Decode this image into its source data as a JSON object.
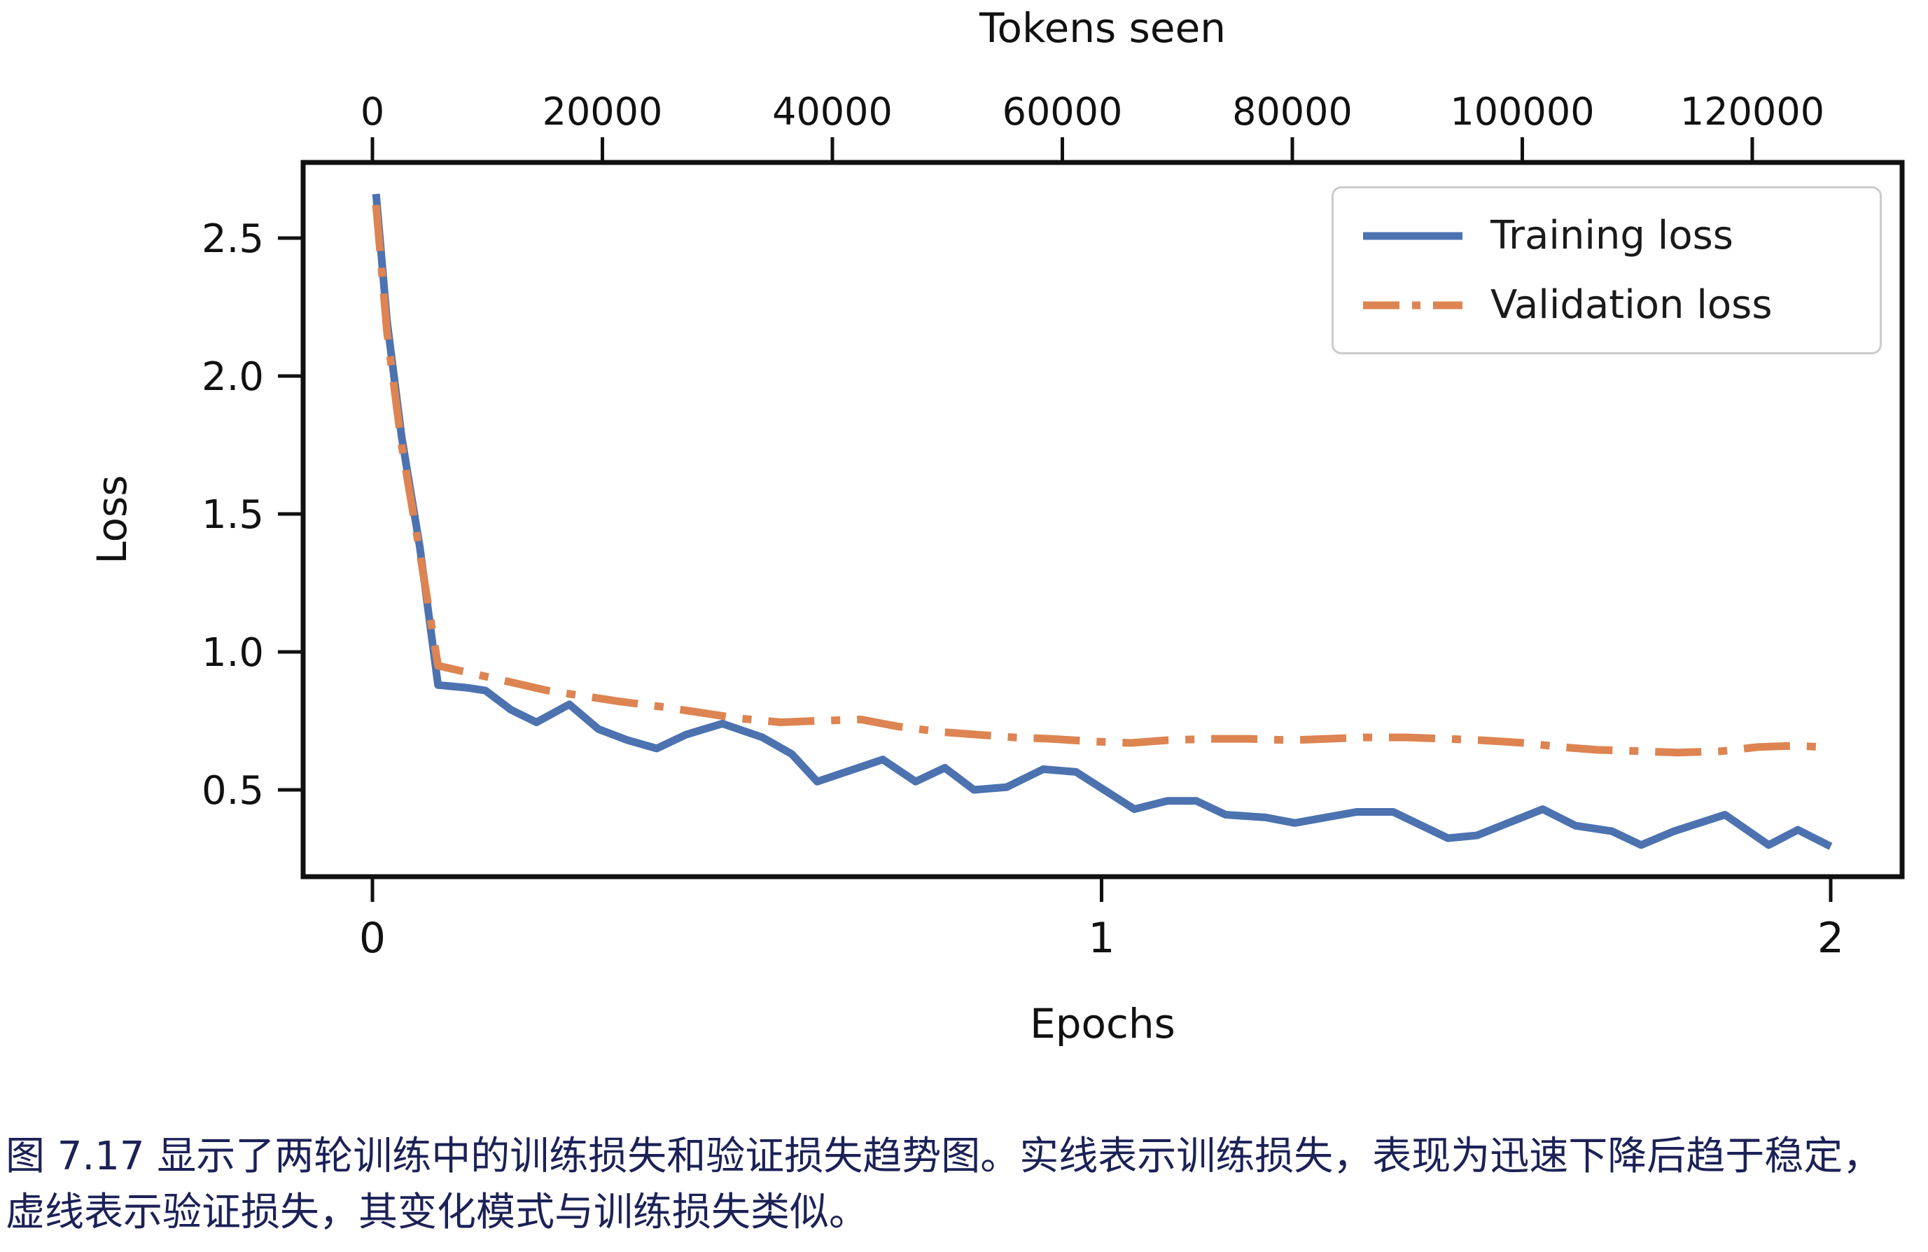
{
  "figure": {
    "caption": {
      "line1": "图 7.17 显示了两轮训练中的训练损失和验证损失趋势图。实线表示训练损失，表现为迅速下降后趋于稳定，",
      "line2": "虚线表示验证损失，其变化模式与训练损失类似。"
    }
  },
  "chart_data": {
    "type": "line",
    "title": "",
    "top_axis": {
      "label": "Tokens seen",
      "ticks": [
        0,
        20000,
        40000,
        60000,
        80000,
        100000,
        120000
      ],
      "range": [
        -6000,
        133000
      ]
    },
    "x_axis": {
      "label": "Epochs",
      "ticks": [
        0,
        1,
        2
      ],
      "range": [
        -0.095,
        2.098
      ]
    },
    "y_axis": {
      "label": "Loss",
      "ticks": [
        2.5,
        2.0,
        1.5,
        1.0,
        0.5
      ],
      "range": [
        0.19,
        2.77
      ]
    },
    "grid": false,
    "legend": {
      "position": "upper right",
      "entries": [
        {
          "label": "Training loss",
          "color": "#4C72B0",
          "style": "solid"
        },
        {
          "label": "Validation loss",
          "color": "#DD8452",
          "style": "dashdot"
        }
      ]
    },
    "series": [
      {
        "name": "Training loss",
        "color": "#4C72B0",
        "style": "solid",
        "x": [
          0.005,
          0.02,
          0.04,
          0.065,
          0.09,
          0.13,
          0.155,
          0.19,
          0.225,
          0.27,
          0.31,
          0.35,
          0.39,
          0.43,
          0.48,
          0.535,
          0.575,
          0.61,
          0.655,
          0.7,
          0.745,
          0.785,
          0.825,
          0.87,
          0.92,
          0.965,
          1.045,
          1.09,
          1.13,
          1.17,
          1.225,
          1.265,
          1.35,
          1.4,
          1.475,
          1.515,
          1.605,
          1.65,
          1.7,
          1.74,
          1.785,
          1.855,
          1.915,
          1.955,
          2.0
        ],
        "y": [
          2.66,
          2.2,
          1.78,
          1.38,
          0.88,
          0.87,
          0.86,
          0.79,
          0.745,
          0.81,
          0.72,
          0.68,
          0.65,
          0.7,
          0.74,
          0.69,
          0.63,
          0.53,
          0.57,
          0.61,
          0.53,
          0.58,
          0.5,
          0.51,
          0.575,
          0.565,
          0.43,
          0.46,
          0.46,
          0.41,
          0.4,
          0.38,
          0.42,
          0.42,
          0.325,
          0.335,
          0.43,
          0.37,
          0.35,
          0.3,
          0.35,
          0.41,
          0.3,
          0.355,
          0.295
        ]
      },
      {
        "name": "Validation loss",
        "color": "#DD8452",
        "style": "dashdot",
        "x": [
          0.005,
          0.02,
          0.04,
          0.065,
          0.09,
          0.14,
          0.19,
          0.24,
          0.29,
          0.34,
          0.4,
          0.45,
          0.5,
          0.56,
          0.61,
          0.67,
          0.72,
          0.78,
          0.83,
          0.88,
          0.93,
          0.99,
          1.04,
          1.09,
          1.15,
          1.2,
          1.26,
          1.31,
          1.36,
          1.42,
          1.47,
          1.52,
          1.58,
          1.63,
          1.68,
          1.74,
          1.79,
          1.85,
          1.9,
          1.95,
          1.99
        ],
        "y": [
          2.62,
          2.16,
          1.75,
          1.36,
          0.95,
          0.92,
          0.89,
          0.86,
          0.84,
          0.82,
          0.8,
          0.78,
          0.76,
          0.745,
          0.75,
          0.755,
          0.73,
          0.71,
          0.7,
          0.69,
          0.685,
          0.675,
          0.67,
          0.68,
          0.685,
          0.685,
          0.68,
          0.685,
          0.69,
          0.69,
          0.685,
          0.68,
          0.67,
          0.655,
          0.645,
          0.64,
          0.635,
          0.64,
          0.655,
          0.66,
          0.655
        ]
      }
    ]
  }
}
